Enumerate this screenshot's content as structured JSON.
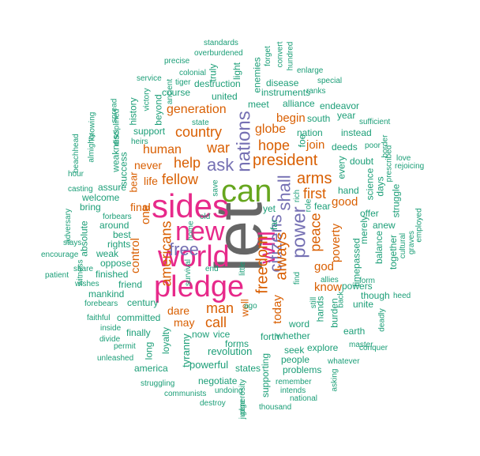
{
  "colors": {
    "green": "#1b9e77",
    "orange": "#d95f02",
    "purple": "#7570b3",
    "pink": "#e7298a",
    "lime": "#66a61e",
    "gray": "#666666"
  },
  "words": [
    {
      "text": "let",
      "color": "gray",
      "rank": 1
    },
    {
      "text": "can",
      "color": "lime",
      "rank": 2
    },
    {
      "text": "sides",
      "color": "pink",
      "rank": 3
    },
    {
      "text": "world",
      "color": "pink",
      "rank": 4
    },
    {
      "text": "pledge",
      "color": "pink",
      "rank": 5
    },
    {
      "text": "new",
      "color": "pink",
      "rank": 6
    },
    {
      "text": "will",
      "color": "pink",
      "rank": 7
    },
    {
      "text": "nations",
      "color": "purple",
      "rank": 8
    },
    {
      "text": "power",
      "color": "purple",
      "rank": 9
    },
    {
      "text": "citizens",
      "color": "purple",
      "rank": 10
    },
    {
      "text": "shall",
      "color": "purple",
      "rank": 11
    },
    {
      "text": "free",
      "color": "purple",
      "rank": 12
    },
    {
      "text": "ask",
      "color": "purple",
      "rank": 13
    },
    {
      "text": "always",
      "color": "orange",
      "rank": 14
    },
    {
      "text": "freedom",
      "color": "orange",
      "rank": 15
    },
    {
      "text": "president",
      "color": "orange",
      "rank": 16
    },
    {
      "text": "americans",
      "color": "orange",
      "rank": 17
    },
    {
      "text": "country",
      "color": "orange",
      "rank": 18
    },
    {
      "text": "arms",
      "color": "orange",
      "rank": 19
    },
    {
      "text": "peace",
      "color": "orange",
      "rank": 20
    },
    {
      "text": "hope",
      "color": "orange",
      "rank": 21
    },
    {
      "text": "war",
      "color": "orange",
      "rank": 22
    },
    {
      "text": "man",
      "color": "orange",
      "rank": 23
    },
    {
      "text": "call",
      "color": "orange",
      "rank": 24
    },
    {
      "text": "first",
      "color": "orange",
      "rank": 25
    },
    {
      "text": "help",
      "color": "orange",
      "rank": 26
    },
    {
      "text": "fellow",
      "color": "orange",
      "rank": 27
    },
    {
      "text": "generation",
      "color": "orange",
      "rank": 28
    },
    {
      "text": "globe",
      "color": "orange",
      "rank": 29
    },
    {
      "text": "human",
      "color": "orange",
      "rank": 30
    },
    {
      "text": "today",
      "color": "orange",
      "rank": 31
    },
    {
      "text": "control",
      "color": "orange",
      "rank": 32
    },
    {
      "text": "one",
      "color": "orange",
      "rank": 33
    },
    {
      "text": "poverty",
      "color": "orange",
      "rank": 34
    },
    {
      "text": "god",
      "color": "orange",
      "rank": 35
    },
    {
      "text": "know",
      "color": "orange",
      "rank": 36
    },
    {
      "text": "good",
      "color": "orange",
      "rank": 37
    },
    {
      "text": "join",
      "color": "orange",
      "rank": 38
    },
    {
      "text": "begin",
      "color": "orange",
      "rank": 39
    },
    {
      "text": "final",
      "color": "orange",
      "rank": 40
    },
    {
      "text": "life",
      "color": "orange",
      "rank": 41
    },
    {
      "text": "never",
      "color": "orange",
      "rank": 42
    },
    {
      "text": "dare",
      "color": "orange",
      "rank": 43
    },
    {
      "text": "may",
      "color": "orange",
      "rank": 44
    },
    {
      "text": "bear",
      "color": "orange",
      "rank": 45
    },
    {
      "text": "well",
      "color": "orange",
      "rank": 46
    },
    {
      "text": "revolution",
      "color": "green",
      "rank": 47
    },
    {
      "text": "tyranny",
      "color": "green",
      "rank": 48
    },
    {
      "text": "powerful",
      "color": "green",
      "rank": 49
    },
    {
      "text": "loyalty",
      "color": "green",
      "rank": 50
    },
    {
      "text": "america",
      "color": "green",
      "rank": 51
    },
    {
      "text": "forms",
      "color": "green",
      "rank": 52
    },
    {
      "text": "states",
      "color": "green",
      "rank": 53
    },
    {
      "text": "negotiate",
      "color": "green",
      "rank": 54
    },
    {
      "text": "supporting",
      "color": "green",
      "rank": 55
    },
    {
      "text": "problems",
      "color": "green",
      "rank": 56
    },
    {
      "text": "people",
      "color": "green",
      "rank": 57
    },
    {
      "text": "seek",
      "color": "green",
      "rank": 58
    },
    {
      "text": "explore",
      "color": "green",
      "rank": 59
    },
    {
      "text": "earth",
      "color": "green",
      "rank": 60
    },
    {
      "text": "unite",
      "color": "green",
      "rank": 61
    },
    {
      "text": "powers",
      "color": "green",
      "rank": 62
    },
    {
      "text": "though",
      "color": "green",
      "rank": 63
    },
    {
      "text": "burden",
      "color": "green",
      "rank": 64
    },
    {
      "text": "hands",
      "color": "green",
      "rank": 65
    },
    {
      "text": "word",
      "color": "green",
      "rank": 66
    },
    {
      "text": "whether",
      "color": "green",
      "rank": 67
    },
    {
      "text": "forth",
      "color": "green",
      "rank": 68
    },
    {
      "text": "vice",
      "color": "green",
      "rank": 69
    },
    {
      "text": "now",
      "color": "green",
      "rank": 70
    },
    {
      "text": "long",
      "color": "green",
      "rank": 71
    },
    {
      "text": "finally",
      "color": "green",
      "rank": 72
    },
    {
      "text": "committed",
      "color": "green",
      "rank": 73
    },
    {
      "text": "century",
      "color": "green",
      "rank": 74
    },
    {
      "text": "mankind",
      "color": "green",
      "rank": 75
    },
    {
      "text": "friend",
      "color": "green",
      "rank": 76
    },
    {
      "text": "finished",
      "color": "green",
      "rank": 77
    },
    {
      "text": "oppose",
      "color": "green",
      "rank": 78
    },
    {
      "text": "weak",
      "color": "green",
      "rank": 79
    },
    {
      "text": "rights",
      "color": "green",
      "rank": 80
    },
    {
      "text": "best",
      "color": "green",
      "rank": 81
    },
    {
      "text": "around",
      "color": "green",
      "rank": 82
    },
    {
      "text": "bring",
      "color": "green",
      "rank": 83
    },
    {
      "text": "welcome",
      "color": "green",
      "rank": 84
    },
    {
      "text": "assure",
      "color": "green",
      "rank": 85
    },
    {
      "text": "success",
      "color": "green",
      "rank": 86
    },
    {
      "text": "weakness",
      "color": "green",
      "rank": 87
    },
    {
      "text": "absolute",
      "color": "green",
      "rank": 88
    },
    {
      "text": "support",
      "color": "green",
      "rank": 89
    },
    {
      "text": "beyond",
      "color": "green",
      "rank": 90
    },
    {
      "text": "history",
      "color": "green",
      "rank": 91
    },
    {
      "text": "course",
      "color": "green",
      "rank": 92
    },
    {
      "text": "united",
      "color": "green",
      "rank": 93
    },
    {
      "text": "destruction",
      "color": "green",
      "rank": 94
    },
    {
      "text": "truly",
      "color": "green",
      "rank": 95
    },
    {
      "text": "light",
      "color": "green",
      "rank": 96
    },
    {
      "text": "enemies",
      "color": "green",
      "rank": 97
    },
    {
      "text": "disease",
      "color": "green",
      "rank": 98
    },
    {
      "text": "instruments",
      "color": "green",
      "rank": 99
    },
    {
      "text": "alliance",
      "color": "green",
      "rank": 100
    },
    {
      "text": "meet",
      "color": "green",
      "rank": 101
    },
    {
      "text": "endeavor",
      "color": "green",
      "rank": 102
    },
    {
      "text": "year",
      "color": "green",
      "rank": 103
    },
    {
      "text": "south",
      "color": "green",
      "rank": 104
    },
    {
      "text": "nation",
      "color": "green",
      "rank": 105
    },
    {
      "text": "instead",
      "color": "green",
      "rank": 106
    },
    {
      "text": "deeds",
      "color": "green",
      "rank": 107
    },
    {
      "text": "doubt",
      "color": "green",
      "rank": 108
    },
    {
      "text": "hand",
      "color": "green",
      "rank": 109
    },
    {
      "text": "science",
      "color": "green",
      "rank": 110
    },
    {
      "text": "days",
      "color": "green",
      "rank": 111
    },
    {
      "text": "struggle",
      "color": "green",
      "rank": 112
    },
    {
      "text": "offer",
      "color": "green",
      "rank": 113
    },
    {
      "text": "anew",
      "color": "green",
      "rank": 114
    },
    {
      "text": "merely",
      "color": "green",
      "rank": 115
    },
    {
      "text": "balance",
      "color": "green",
      "rank": 116
    },
    {
      "text": "together",
      "color": "green",
      "rank": 117
    },
    {
      "text": "timepassed",
      "color": "green",
      "rank": 118
    },
    {
      "text": "fear",
      "color": "green",
      "rank": 119
    },
    {
      "text": "yet",
      "color": "green",
      "rank": 120
    },
    {
      "text": "far",
      "color": "green",
      "rank": 121
    },
    {
      "text": "foe",
      "color": "green",
      "rank": 122
    },
    {
      "text": "every",
      "color": "green",
      "rank": 123
    },
    {
      "text": "standards",
      "color": "green",
      "rank": 124
    },
    {
      "text": "overburdened",
      "color": "green",
      "rank": 125
    },
    {
      "text": "precise",
      "color": "green",
      "rank": 126
    },
    {
      "text": "colonial",
      "color": "green",
      "rank": 127
    },
    {
      "text": "tiger",
      "color": "green",
      "rank": 128
    },
    {
      "text": "service",
      "color": "green",
      "rank": 129
    },
    {
      "text": "ancient",
      "color": "green",
      "rank": 130
    },
    {
      "text": "victory",
      "color": "green",
      "rank": 131
    },
    {
      "text": "spread",
      "color": "green",
      "rank": 132
    },
    {
      "text": "disciplined",
      "color": "green",
      "rank": 133
    },
    {
      "text": "knowing",
      "color": "green",
      "rank": 134
    },
    {
      "text": "almighty",
      "color": "green",
      "rank": 135
    },
    {
      "text": "beachhead",
      "color": "green",
      "rank": 136
    },
    {
      "text": "heirs",
      "color": "green",
      "rank": 137
    },
    {
      "text": "hour",
      "color": "green",
      "rank": 138
    },
    {
      "text": "casting",
      "color": "green",
      "rank": 139
    },
    {
      "text": "forbears",
      "color": "green",
      "rank": 140
    },
    {
      "text": "adversary",
      "color": "green",
      "rank": 141
    },
    {
      "text": "stays",
      "color": "green",
      "rank": 142
    },
    {
      "text": "encourage",
      "color": "green",
      "rank": 143
    },
    {
      "text": "patient",
      "color": "green",
      "rank": 144
    },
    {
      "text": "share",
      "color": "green",
      "rank": 145
    },
    {
      "text": "witness",
      "color": "green",
      "rank": 146
    },
    {
      "text": "wishes",
      "color": "green",
      "rank": 147
    },
    {
      "text": "forebears",
      "color": "green",
      "rank": 148
    },
    {
      "text": "faithful",
      "color": "green",
      "rank": 149
    },
    {
      "text": "inside",
      "color": "green",
      "rank": 150
    },
    {
      "text": "divide",
      "color": "green",
      "rank": 151
    },
    {
      "text": "permit",
      "color": "green",
      "rank": 152
    },
    {
      "text": "unleashed",
      "color": "green",
      "rank": 153
    },
    {
      "text": "struggling",
      "color": "green",
      "rank": 154
    },
    {
      "text": "communists",
      "color": "green",
      "rank": 155
    },
    {
      "text": "destroy",
      "color": "green",
      "rank": 156
    },
    {
      "text": "undoing",
      "color": "green",
      "rank": 157
    },
    {
      "text": "judge",
      "color": "green",
      "rank": 158
    },
    {
      "text": "generosity",
      "color": "green",
      "rank": 159
    },
    {
      "text": "thousand",
      "color": "green",
      "rank": 160
    },
    {
      "text": "national",
      "color": "green",
      "rank": 161
    },
    {
      "text": "intends",
      "color": "green",
      "rank": 162
    },
    {
      "text": "remember",
      "color": "green",
      "rank": 163
    },
    {
      "text": "asking",
      "color": "green",
      "rank": 164
    },
    {
      "text": "whatever",
      "color": "green",
      "rank": 165
    },
    {
      "text": "master",
      "color": "green",
      "rank": 166
    },
    {
      "text": "conquer",
      "color": "green",
      "rank": 167
    },
    {
      "text": "deadly",
      "color": "green",
      "rank": 168
    },
    {
      "text": "heed",
      "color": "green",
      "rank": 169
    },
    {
      "text": "graves",
      "color": "green",
      "rank": 170
    },
    {
      "text": "cultural",
      "color": "green",
      "rank": 171
    },
    {
      "text": "employed",
      "color": "green",
      "rank": 172
    },
    {
      "text": "rejoicing",
      "color": "green",
      "rank": 173
    },
    {
      "text": "love",
      "color": "green",
      "rank": 174
    },
    {
      "text": "prescribed",
      "color": "green",
      "rank": 175
    },
    {
      "text": "border",
      "color": "green",
      "rank": 176
    },
    {
      "text": "poor",
      "color": "green",
      "rank": 177
    },
    {
      "text": "sufficient",
      "color": "green",
      "rank": 178
    },
    {
      "text": "special",
      "color": "green",
      "rank": 179
    },
    {
      "text": "ranks",
      "color": "green",
      "rank": 180
    },
    {
      "text": "enlarge",
      "color": "green",
      "rank": 181
    },
    {
      "text": "hundred",
      "color": "green",
      "rank": 182
    },
    {
      "text": "convert",
      "color": "green",
      "rank": 183
    },
    {
      "text": "forget",
      "color": "green",
      "rank": 184
    },
    {
      "text": "role",
      "color": "green",
      "rank": 185
    },
    {
      "text": "rich",
      "color": "green",
      "rank": 186
    },
    {
      "text": "state",
      "color": "green",
      "rank": 187
    },
    {
      "text": "save",
      "color": "green",
      "rank": 188
    },
    {
      "text": "old",
      "color": "green",
      "rank": 189
    },
    {
      "text": "home",
      "color": "green",
      "rank": 190
    },
    {
      "text": "survival",
      "color": "green",
      "rank": 191
    },
    {
      "text": "end",
      "color": "green",
      "rank": 192
    },
    {
      "text": "little",
      "color": "green",
      "rank": 193
    },
    {
      "text": "ago",
      "color": "green",
      "rank": 194
    },
    {
      "text": "find",
      "color": "green",
      "rank": 195
    },
    {
      "text": "still",
      "color": "green",
      "rank": 196
    },
    {
      "text": "allies",
      "color": "green",
      "rank": 197
    },
    {
      "text": "back",
      "color": "green",
      "rank": 198
    },
    {
      "text": "form",
      "color": "green",
      "rank": 199
    }
  ]
}
